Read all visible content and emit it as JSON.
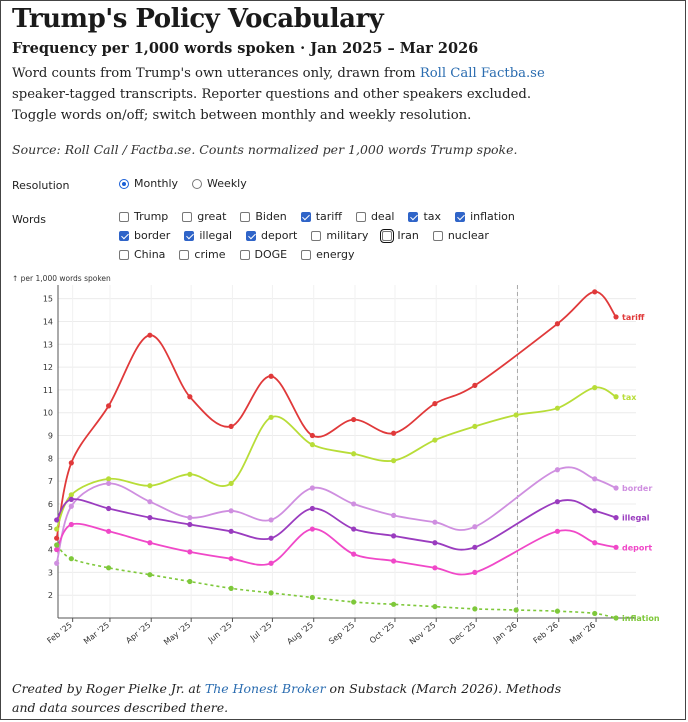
{
  "header": {
    "title": "Trump's Policy Vocabulary",
    "subtitle": "Frequency per 1,000 words spoken · Jan 2025 – Mar 2026",
    "desc_part1": "Word counts from Trump's own utterances only, drawn from ",
    "desc_link": "Roll Call Factba.se",
    "desc_part2": " speaker-tagged transcripts. Reporter questions and other speakers excluded. Toggle words on/off; switch between monthly and weekly resolution.",
    "source": "Source: Roll Call / Factba.se. Counts normalized per 1,000 words Trump spoke."
  },
  "controls": {
    "resolution_label": "Resolution",
    "resolution_options": [
      {
        "label": "Monthly",
        "selected": true
      },
      {
        "label": "Weekly",
        "selected": false
      }
    ],
    "words_label": "Words",
    "words": [
      {
        "label": "Trump",
        "checked": false
      },
      {
        "label": "great",
        "checked": false
      },
      {
        "label": "Biden",
        "checked": false
      },
      {
        "label": "tariff",
        "checked": true
      },
      {
        "label": "deal",
        "checked": false
      },
      {
        "label": "tax",
        "checked": true
      },
      {
        "label": "inflation",
        "checked": true
      },
      {
        "label": "border",
        "checked": true
      },
      {
        "label": "illegal",
        "checked": true
      },
      {
        "label": "deport",
        "checked": true
      },
      {
        "label": "military",
        "checked": false
      },
      {
        "label": "Iran",
        "checked": false,
        "focused": true
      },
      {
        "label": "nuclear",
        "checked": false
      },
      {
        "label": "China",
        "checked": false
      },
      {
        "label": "crime",
        "checked": false
      },
      {
        "label": "DOGE",
        "checked": false
      },
      {
        "label": "energy",
        "checked": false
      }
    ]
  },
  "chart_data": {
    "type": "line",
    "ylabel": "↑ per 1,000 words spoken",
    "ylim": [
      1,
      15.6
    ],
    "yticks": [
      2,
      3,
      4,
      5,
      6,
      7,
      8,
      9,
      10,
      11,
      12,
      13,
      14,
      15
    ],
    "x_range": [
      "2025-01-21",
      "2026-03-31"
    ],
    "x_tick_labels": [
      "Feb '25",
      "Mar '25",
      "Apr '25",
      "May '25",
      "Jun '25",
      "Jul '25",
      "Aug '25",
      "Sep '25",
      "Oct '25",
      "Nov '25",
      "Dec '25",
      "Jan '26",
      "Feb '26",
      "Mar '26"
    ],
    "x_tick_dates": [
      "2025-02-01",
      "2025-03-01",
      "2025-04-01",
      "2025-05-01",
      "2025-06-01",
      "2025-07-01",
      "2025-08-01",
      "2025-09-01",
      "2025-10-01",
      "2025-11-01",
      "2025-12-01",
      "2026-01-01",
      "2026-02-01",
      "2026-03-01"
    ],
    "reference_line": "2026-01-01",
    "grid": true,
    "series": [
      {
        "name": "tariff",
        "color": "#e0393a",
        "style": "solid",
        "dates": [
          "2025-01-20",
          "2025-01-31",
          "2025-02-28",
          "2025-03-31",
          "2025-04-30",
          "2025-05-31",
          "2025-06-30",
          "2025-07-31",
          "2025-08-31",
          "2025-09-30",
          "2025-10-31",
          "2025-11-30",
          "2025-12-31",
          "2026-01-31",
          "2026-02-28",
          "2026-03-16"
        ],
        "values": [
          4.5,
          7.8,
          10.3,
          13.4,
          10.7,
          9.4,
          11.6,
          9.0,
          9.7,
          9.1,
          10.4,
          11.2,
          null,
          13.9,
          15.3,
          14.2
        ]
      },
      {
        "name": "tax",
        "color": "#b8dd38",
        "style": "solid",
        "dates": [
          "2025-01-20",
          "2025-01-31",
          "2025-02-28",
          "2025-03-31",
          "2025-04-30",
          "2025-05-31",
          "2025-06-30",
          "2025-07-31",
          "2025-08-31",
          "2025-09-30",
          "2025-10-31",
          "2025-11-30",
          "2025-12-31",
          "2026-01-31",
          "2026-02-28",
          "2026-03-16"
        ],
        "values": [
          4.9,
          6.4,
          7.1,
          6.8,
          7.3,
          6.9,
          9.8,
          8.6,
          8.2,
          7.9,
          8.8,
          9.4,
          9.9,
          10.2,
          11.1,
          10.7
        ]
      },
      {
        "name": "border",
        "color": "#cf8fe0",
        "style": "solid",
        "dates": [
          "2025-01-20",
          "2025-01-31",
          "2025-02-28",
          "2025-03-31",
          "2025-04-30",
          "2025-05-31",
          "2025-06-30",
          "2025-07-31",
          "2025-08-31",
          "2025-09-30",
          "2025-10-31",
          "2025-11-30",
          "2025-12-31",
          "2026-01-31",
          "2026-02-28",
          "2026-03-16"
        ],
        "values": [
          3.4,
          5.9,
          6.9,
          6.1,
          5.4,
          5.7,
          5.3,
          6.7,
          6.0,
          5.5,
          5.2,
          5.0,
          null,
          7.5,
          7.1,
          6.7
        ]
      },
      {
        "name": "illegal",
        "color": "#9a3cbf",
        "style": "solid",
        "dates": [
          "2025-01-20",
          "2025-01-31",
          "2025-02-28",
          "2025-03-31",
          "2025-04-30",
          "2025-05-31",
          "2025-06-30",
          "2025-07-31",
          "2025-08-31",
          "2025-09-30",
          "2025-10-31",
          "2025-11-30",
          "2025-12-31",
          "2026-01-31",
          "2026-02-28",
          "2026-03-16"
        ],
        "values": [
          5.3,
          6.2,
          5.8,
          5.4,
          5.1,
          4.8,
          4.5,
          5.8,
          4.9,
          4.6,
          4.3,
          4.1,
          null,
          6.1,
          5.7,
          5.4
        ]
      },
      {
        "name": "deport",
        "color": "#f048c8",
        "style": "solid",
        "dates": [
          "2025-01-20",
          "2025-01-31",
          "2025-02-28",
          "2025-03-31",
          "2025-04-30",
          "2025-05-31",
          "2025-06-30",
          "2025-07-31",
          "2025-08-31",
          "2025-09-30",
          "2025-10-31",
          "2025-11-30",
          "2025-12-31",
          "2026-01-31",
          "2026-02-28",
          "2026-03-16"
        ],
        "values": [
          4.0,
          5.1,
          4.8,
          4.3,
          3.9,
          3.6,
          3.4,
          4.9,
          3.8,
          3.5,
          3.2,
          3.0,
          null,
          4.8,
          4.3,
          4.1
        ]
      },
      {
        "name": "inflation",
        "color": "#7ec83a",
        "style": "dashed",
        "dates": [
          "2025-01-20",
          "2025-01-31",
          "2025-02-28",
          "2025-03-31",
          "2025-04-30",
          "2025-05-31",
          "2025-06-30",
          "2025-07-31",
          "2025-08-31",
          "2025-09-30",
          "2025-10-31",
          "2025-11-30",
          "2025-12-31",
          "2026-01-31",
          "2026-02-28",
          "2026-03-16"
        ],
        "values": [
          4.2,
          3.6,
          3.2,
          2.9,
          2.6,
          2.3,
          2.1,
          1.9,
          1.7,
          1.6,
          1.5,
          1.4,
          1.35,
          1.3,
          1.2,
          1.0
        ]
      }
    ]
  },
  "footer": {
    "part1": "Created by Roger Pielke Jr. at ",
    "link": "The Honest Broker",
    "part2": " on Substack (March 2026). Methods and data sources described there."
  }
}
